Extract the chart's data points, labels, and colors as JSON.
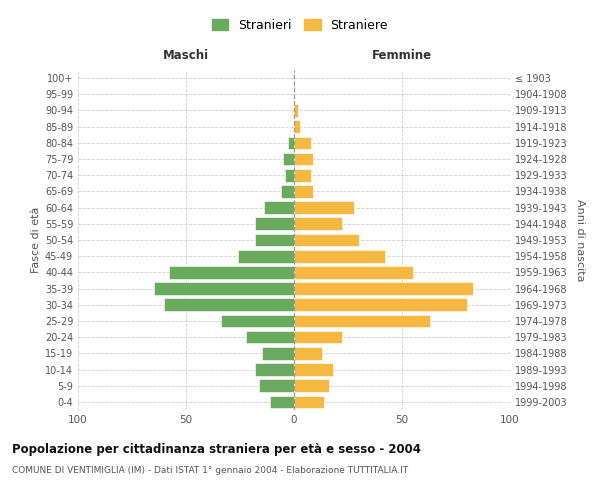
{
  "age_groups": [
    "0-4",
    "5-9",
    "10-14",
    "15-19",
    "20-24",
    "25-29",
    "30-34",
    "35-39",
    "40-44",
    "45-49",
    "50-54",
    "55-59",
    "60-64",
    "65-69",
    "70-74",
    "75-79",
    "80-84",
    "85-89",
    "90-94",
    "95-99",
    "100+"
  ],
  "birth_years": [
    "1999-2003",
    "1994-1998",
    "1989-1993",
    "1984-1988",
    "1979-1983",
    "1974-1978",
    "1969-1973",
    "1964-1968",
    "1959-1963",
    "1954-1958",
    "1949-1953",
    "1944-1948",
    "1939-1943",
    "1934-1938",
    "1929-1933",
    "1924-1928",
    "1919-1923",
    "1914-1918",
    "1909-1913",
    "1904-1908",
    "≤ 1903"
  ],
  "maschi": [
    11,
    16,
    18,
    15,
    22,
    34,
    60,
    65,
    58,
    26,
    18,
    18,
    14,
    6,
    4,
    5,
    3,
    0,
    0,
    0,
    0
  ],
  "femmine": [
    14,
    16,
    18,
    13,
    22,
    63,
    80,
    83,
    55,
    42,
    30,
    22,
    28,
    9,
    8,
    9,
    8,
    3,
    2,
    0,
    0
  ],
  "color_maschi": "#6aaa5e",
  "color_femmine": "#f5b942",
  "title": "Popolazione per cittadinanza straniera per età e sesso - 2004",
  "subtitle": "COMUNE DI VENTIMIGLIA (IM) - Dati ISTAT 1° gennaio 2004 - Elaborazione TUTTITALIA.IT",
  "label_maschi": "Maschi",
  "label_femmine": "Femmine",
  "ylabel_left": "Fasce di età",
  "ylabel_right": "Anni di nascita",
  "legend_stranieri": "Stranieri",
  "legend_straniere": "Straniere",
  "xlim": 100,
  "background_color": "#ffffff",
  "grid_color": "#d0d0d0"
}
